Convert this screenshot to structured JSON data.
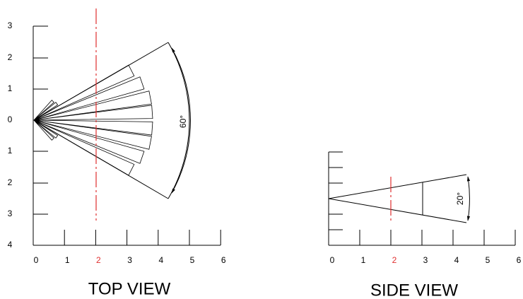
{
  "top_view": {
    "title": "TOP VIEW",
    "y_labels": [
      "3",
      "2",
      "1",
      "0",
      "1",
      "2",
      "3",
      "4"
    ],
    "x_labels": [
      "0",
      "1",
      "2",
      "3",
      "4",
      "5",
      "6"
    ],
    "angle_label": "60°"
  },
  "side_view": {
    "title": "SIDE VIEW",
    "x_labels": [
      "0",
      "1",
      "2",
      "3",
      "4",
      "5",
      "6"
    ],
    "angle_label": "20°"
  }
}
